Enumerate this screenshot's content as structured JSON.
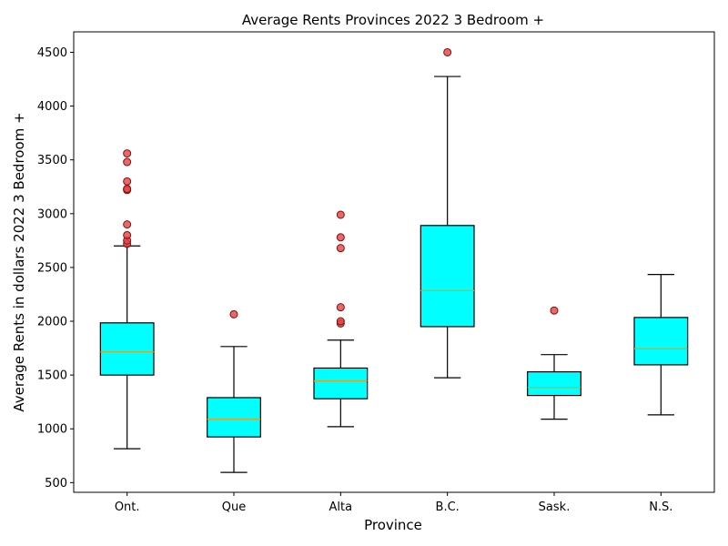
{
  "chart_data": {
    "type": "box",
    "title": "Average Rents Provinces 2022 3 Bedroom +",
    "xlabel": "Province",
    "ylabel": "Average Rents in dollars 2022 3 Bedroom +",
    "ylim": [
      410,
      4690
    ],
    "yticks": [
      500,
      1000,
      1500,
      2000,
      2500,
      3000,
      3500,
      4000,
      4500
    ],
    "grid": false,
    "colors": {
      "box_fill": "#00ffff",
      "box_edge": "#000000",
      "median": "#e0a020",
      "outlier_fill": "#e84040",
      "outlier_edge": "#7a1010"
    },
    "categories": [
      "Ont.",
      "Que",
      "Alta",
      "B.C.",
      "Sask.",
      "N.S."
    ],
    "boxes": [
      {
        "label": "Ont.",
        "whisker_low": 815,
        "q1": 1500,
        "median": 1715,
        "q3": 1985,
        "whisker_high": 2700,
        "outliers": [
          2720,
          2750,
          2800,
          2900,
          3220,
          3230,
          3300,
          3480,
          3560
        ]
      },
      {
        "label": "Que",
        "whisker_low": 595,
        "q1": 925,
        "median": 1090,
        "q3": 1290,
        "whisker_high": 1765,
        "outliers": [
          2065
        ]
      },
      {
        "label": "Alta",
        "whisker_low": 1020,
        "q1": 1280,
        "median": 1445,
        "q3": 1565,
        "whisker_high": 1825,
        "outliers": [
          1980,
          2000,
          2130,
          2680,
          2780,
          2990
        ]
      },
      {
        "label": "B.C.",
        "whisker_low": 1475,
        "q1": 1950,
        "median": 2285,
        "q3": 2890,
        "whisker_high": 4275,
        "outliers": [
          4500
        ]
      },
      {
        "label": "Sask.",
        "whisker_low": 1090,
        "q1": 1310,
        "median": 1385,
        "q3": 1530,
        "whisker_high": 1690,
        "outliers": [
          2100
        ]
      },
      {
        "label": "N.S.",
        "whisker_low": 1130,
        "q1": 1595,
        "median": 1745,
        "q3": 2035,
        "whisker_high": 2435,
        "outliers": []
      }
    ]
  }
}
